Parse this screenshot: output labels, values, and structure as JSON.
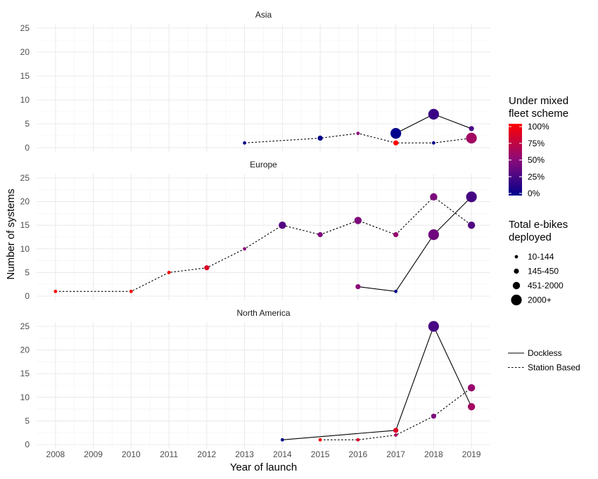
{
  "chart_data": {
    "type": "line",
    "xlabel": "Year of launch",
    "ylabel": "Number of systems",
    "x_ticks": [
      2008,
      2009,
      2010,
      2011,
      2012,
      2013,
      2014,
      2015,
      2016,
      2017,
      2018,
      2019
    ],
    "xlim": [
      2007.5,
      2019.5
    ],
    "y_ticks": [
      0,
      5,
      10,
      15,
      20,
      25
    ],
    "ylim": [
      0,
      25
    ],
    "grid": true,
    "legend_placement": "right",
    "color_legend": {
      "title_lines": [
        "Under mixed",
        "fleet scheme"
      ],
      "labels": [
        "100%",
        "75%",
        "50%",
        "25%",
        "0%"
      ],
      "low_color": "#00008b",
      "mid_color": "#8b0a7a",
      "high_color": "#ff0000"
    },
    "size_legend": {
      "title_lines": [
        "Total e-bikes",
        "deployed"
      ],
      "labels": [
        "10-144",
        "145-450",
        "451-2000",
        "2000+"
      ]
    },
    "linetype_legend": {
      "labels": [
        "Dockless",
        "Station Based"
      ]
    },
    "panels": [
      {
        "title": "Asia",
        "series": [
          {
            "name": "Dockless",
            "points": [
              {
                "x": 2017,
                "y": 3,
                "mixed_fleet_pct": 0,
                "size_class": 4
              },
              {
                "x": 2018,
                "y": 7,
                "mixed_fleet_pct": 20,
                "size_class": 4
              },
              {
                "x": 2019,
                "y": 4,
                "mixed_fleet_pct": 25,
                "size_class": 2
              }
            ]
          },
          {
            "name": "Station Based",
            "points": [
              {
                "x": 2013,
                "y": 1,
                "mixed_fleet_pct": 0,
                "size_class": 1
              },
              {
                "x": 2015,
                "y": 2,
                "mixed_fleet_pct": 0,
                "size_class": 2
              },
              {
                "x": 2016,
                "y": 3,
                "mixed_fleet_pct": 50,
                "size_class": 1
              },
              {
                "x": 2017,
                "y": 1,
                "mixed_fleet_pct": 100,
                "size_class": 2
              },
              {
                "x": 2018,
                "y": 1,
                "mixed_fleet_pct": 0,
                "size_class": 1
              },
              {
                "x": 2019,
                "y": 2,
                "mixed_fleet_pct": 60,
                "size_class": 4
              }
            ]
          }
        ]
      },
      {
        "title": "Europe",
        "series": [
          {
            "name": "Dockless",
            "points": [
              {
                "x": 2016,
                "y": 2,
                "mixed_fleet_pct": 50,
                "size_class": 2
              },
              {
                "x": 2017,
                "y": 1,
                "mixed_fleet_pct": 0,
                "size_class": 1
              },
              {
                "x": 2018,
                "y": 13,
                "mixed_fleet_pct": 40,
                "size_class": 4
              },
              {
                "x": 2019,
                "y": 21,
                "mixed_fleet_pct": 25,
                "size_class": 4
              }
            ]
          },
          {
            "name": "Station Based",
            "points": [
              {
                "x": 2008,
                "y": 1,
                "mixed_fleet_pct": 100,
                "size_class": 1
              },
              {
                "x": 2010,
                "y": 1,
                "mixed_fleet_pct": 100,
                "size_class": 1
              },
              {
                "x": 2011,
                "y": 5,
                "mixed_fleet_pct": 100,
                "size_class": 1
              },
              {
                "x": 2012,
                "y": 6,
                "mixed_fleet_pct": 85,
                "size_class": 2
              },
              {
                "x": 2013,
                "y": 10,
                "mixed_fleet_pct": 50,
                "size_class": 1
              },
              {
                "x": 2014,
                "y": 15,
                "mixed_fleet_pct": 30,
                "size_class": 3
              },
              {
                "x": 2015,
                "y": 13,
                "mixed_fleet_pct": 45,
                "size_class": 2
              },
              {
                "x": 2016,
                "y": 16,
                "mixed_fleet_pct": 45,
                "size_class": 3
              },
              {
                "x": 2017,
                "y": 13,
                "mixed_fleet_pct": 55,
                "size_class": 2
              },
              {
                "x": 2018,
                "y": 21,
                "mixed_fleet_pct": 45,
                "size_class": 3
              },
              {
                "x": 2019,
                "y": 15,
                "mixed_fleet_pct": 30,
                "size_class": 3
              }
            ]
          }
        ]
      },
      {
        "title": "North America",
        "series": [
          {
            "name": "Dockless",
            "points": [
              {
                "x": 2014,
                "y": 1,
                "mixed_fleet_pct": 0,
                "size_class": 1
              },
              {
                "x": 2017,
                "y": 3,
                "mixed_fleet_pct": 85,
                "size_class": 2
              },
              {
                "x": 2018,
                "y": 25,
                "mixed_fleet_pct": 25,
                "size_class": 4
              },
              {
                "x": 2019,
                "y": 8,
                "mixed_fleet_pct": 60,
                "size_class": 3
              }
            ]
          },
          {
            "name": "Station Based",
            "points": [
              {
                "x": 2015,
                "y": 1,
                "mixed_fleet_pct": 100,
                "size_class": 1
              },
              {
                "x": 2016,
                "y": 1,
                "mixed_fleet_pct": 85,
                "size_class": 1
              },
              {
                "x": 2017,
                "y": 2,
                "mixed_fleet_pct": 65,
                "size_class": 1
              },
              {
                "x": 2018,
                "y": 6,
                "mixed_fleet_pct": 45,
                "size_class": 2
              },
              {
                "x": 2019,
                "y": 12,
                "mixed_fleet_pct": 55,
                "size_class": 3
              }
            ]
          }
        ]
      }
    ]
  }
}
